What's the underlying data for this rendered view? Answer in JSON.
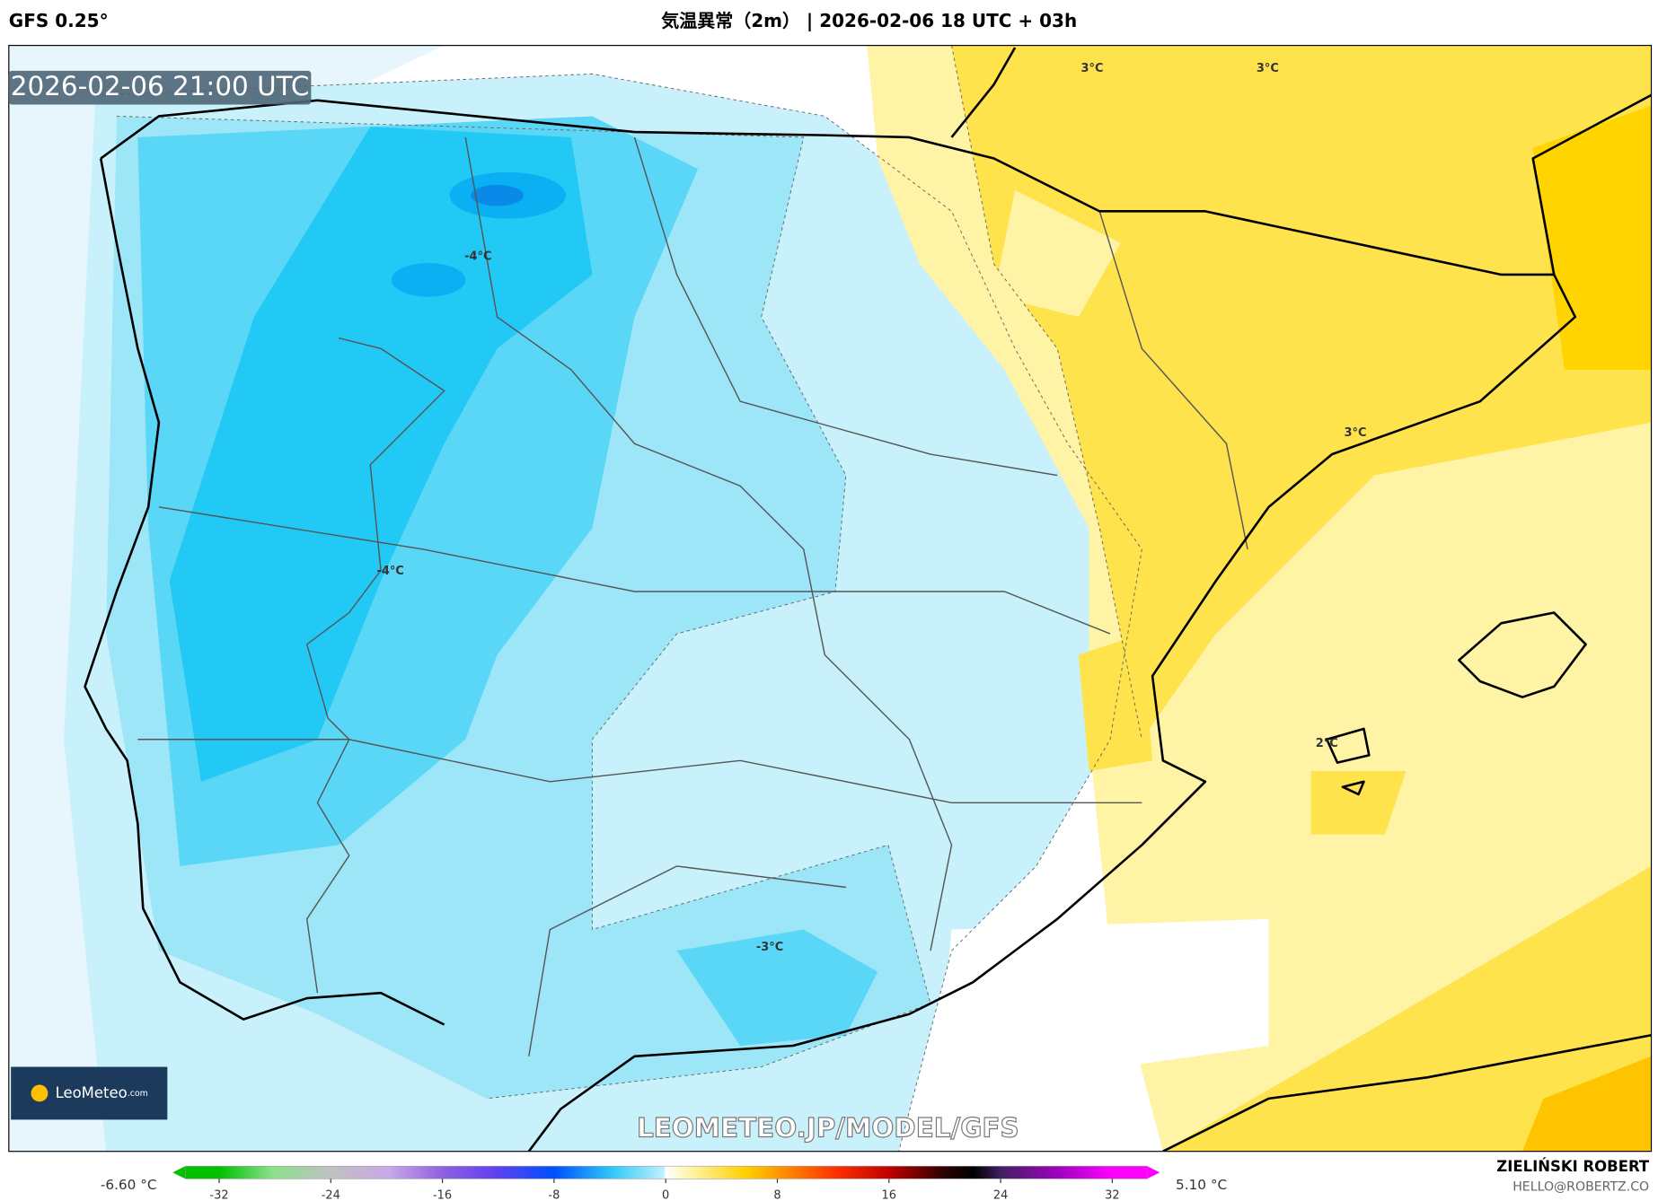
{
  "header": {
    "model": "GFS 0.25°",
    "title": "気温異常（2m） | 2026-02-06 18 UTC + 03h"
  },
  "map": {
    "timestamp": "2026-02-06 21:00 UTC",
    "contour_labels": [
      "3°C",
      "3°C",
      "-4°C",
      "-4°C",
      "3°C",
      "2°C",
      "-3°C"
    ],
    "watermark": "LEOMETEO.JP/MODEL/GFS",
    "logo": {
      "name": "LeoMeteo",
      "suffix": ".com"
    }
  },
  "colorbar": {
    "min_label": "-6.60 °C",
    "max_label": "5.10 °C",
    "ticks": [
      -32,
      -24,
      -16,
      -8,
      0,
      8,
      16,
      24,
      32
    ]
  },
  "footer": {
    "author": "ZIELIŃSKI ROBERT",
    "email": "HELLO@ROBERTZ.CO"
  }
}
